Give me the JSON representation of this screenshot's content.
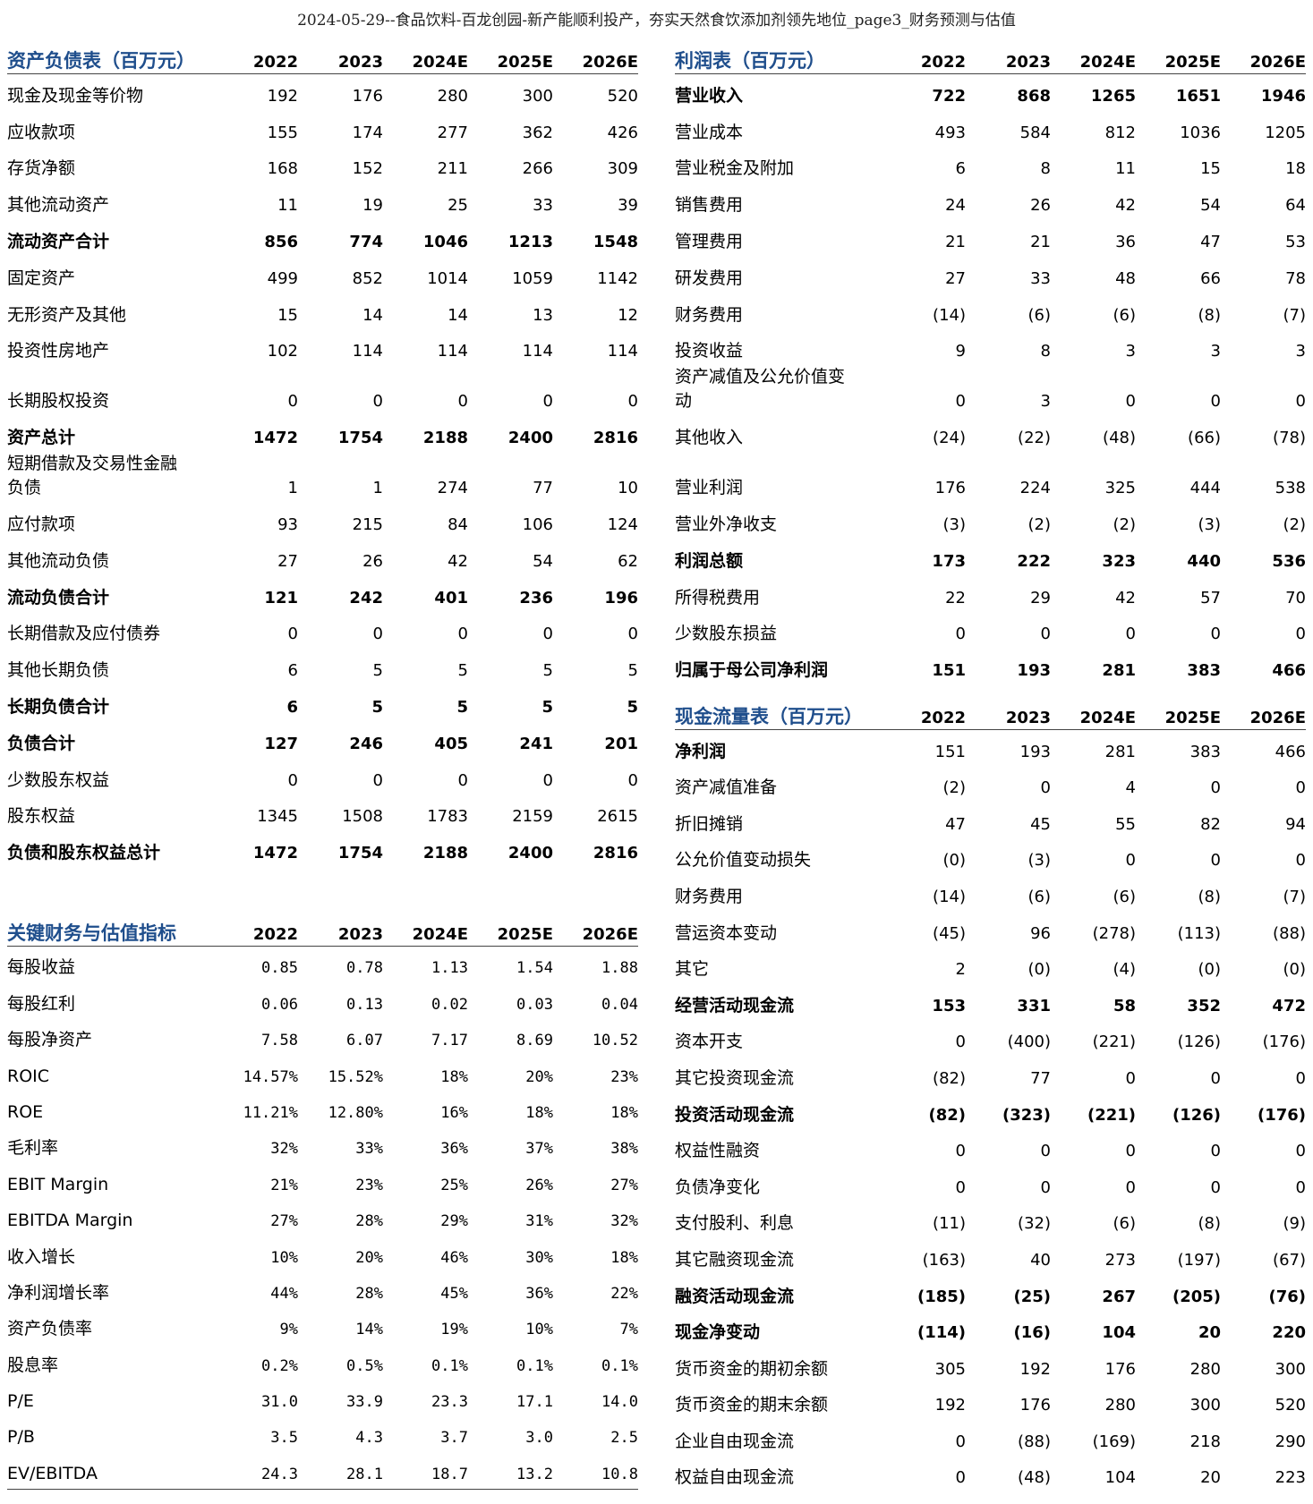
{
  "page_title": "2024-05-29--食品饮料-百龙创园-新产能顺利投产，夯实天然食饮添加剂领先地位_page3_财务预测与估值",
  "balance_sheet": {
    "title": "资产负债表（百万元）",
    "years": [
      "2022",
      "2023",
      "2024E",
      "2025E",
      "2026E"
    ],
    "rows": [
      {
        "label": "现金及现金等价物",
        "values": [
          "192",
          "176",
          "280",
          "300",
          "520"
        ]
      },
      {
        "label": "应收款项",
        "values": [
          "155",
          "174",
          "277",
          "362",
          "426"
        ]
      },
      {
        "label": "存货净额",
        "values": [
          "168",
          "152",
          "211",
          "266",
          "309"
        ]
      },
      {
        "label": "其他流动资产",
        "values": [
          "11",
          "19",
          "25",
          "33",
          "39"
        ]
      },
      {
        "label": "流动资产合计",
        "values": [
          "856",
          "774",
          "1046",
          "1213",
          "1548"
        ],
        "bold": true
      },
      {
        "label": "固定资产",
        "values": [
          "499",
          "852",
          "1014",
          "1059",
          "1142"
        ]
      },
      {
        "label": "无形资产及其他",
        "values": [
          "15",
          "14",
          "14",
          "13",
          "12"
        ]
      },
      {
        "label": "投资性房地产",
        "values": [
          "102",
          "114",
          "114",
          "114",
          "114"
        ]
      },
      {
        "label": "长期股权投资",
        "values": [
          "0",
          "0",
          "0",
          "0",
          "0"
        ],
        "tall": true
      },
      {
        "label": "资产总计",
        "values": [
          "1472",
          "1754",
          "2188",
          "2400",
          "2816"
        ],
        "bold": true
      },
      {
        "label": "短期借款及交易性金融\n负债",
        "values": [
          "1",
          "1",
          "274",
          "77",
          "10"
        ],
        "tall": true
      },
      {
        "label": "应付款项",
        "values": [
          "93",
          "215",
          "84",
          "106",
          "124"
        ]
      },
      {
        "label": "其他流动负债",
        "values": [
          "27",
          "26",
          "42",
          "54",
          "62"
        ]
      },
      {
        "label": "流动负债合计",
        "values": [
          "121",
          "242",
          "401",
          "236",
          "196"
        ],
        "bold": true
      },
      {
        "label": "长期借款及应付债券",
        "values": [
          "0",
          "0",
          "0",
          "0",
          "0"
        ]
      },
      {
        "label": "其他长期负债",
        "values": [
          "6",
          "5",
          "5",
          "5",
          "5"
        ]
      },
      {
        "label": "长期负债合计",
        "values": [
          "6",
          "5",
          "5",
          "5",
          "5"
        ],
        "bold": true
      },
      {
        "label": "负债合计",
        "values": [
          "127",
          "246",
          "405",
          "241",
          "201"
        ],
        "bold": true
      },
      {
        "label": "少数股东权益",
        "values": [
          "0",
          "0",
          "0",
          "0",
          "0"
        ]
      },
      {
        "label": "股东权益",
        "values": [
          "1345",
          "1508",
          "1783",
          "2159",
          "2615"
        ]
      },
      {
        "label": "负债和股东权益总计",
        "values": [
          "1472",
          "1754",
          "2188",
          "2400",
          "2816"
        ],
        "bold": true
      }
    ]
  },
  "key_metrics": {
    "title": "关键财务与估值指标",
    "years": [
      "2022",
      "2023",
      "2024E",
      "2025E",
      "2026E"
    ],
    "rows": [
      {
        "label": "每股收益",
        "values": [
          "0.85",
          "0.78",
          "1.13",
          "1.54",
          "1.88"
        ]
      },
      {
        "label": "每股红利",
        "values": [
          "0.06",
          "0.13",
          "0.02",
          "0.03",
          "0.04"
        ]
      },
      {
        "label": "每股净资产",
        "values": [
          "7.58",
          "6.07",
          "7.17",
          "8.69",
          "10.52"
        ]
      },
      {
        "label": "ROIC",
        "values": [
          "14.57%",
          "15.52%",
          "18%",
          "20%",
          "23%"
        ]
      },
      {
        "label": "ROE",
        "values": [
          "11.21%",
          "12.80%",
          "16%",
          "18%",
          "18%"
        ]
      },
      {
        "label": "毛利率",
        "values": [
          "32%",
          "33%",
          "36%",
          "37%",
          "38%"
        ]
      },
      {
        "label": "EBIT Margin",
        "values": [
          "21%",
          "23%",
          "25%",
          "26%",
          "27%"
        ]
      },
      {
        "label": "EBITDA  Margin",
        "values": [
          "27%",
          "28%",
          "29%",
          "31%",
          "32%"
        ]
      },
      {
        "label": "收入增长",
        "values": [
          "10%",
          "20%",
          "46%",
          "30%",
          "18%"
        ]
      },
      {
        "label": "净利润增长率",
        "values": [
          "44%",
          "28%",
          "45%",
          "36%",
          "22%"
        ]
      },
      {
        "label": "资产负债率",
        "values": [
          "9%",
          "14%",
          "19%",
          "10%",
          "7%"
        ]
      },
      {
        "label": "股息率",
        "values": [
          "0.2%",
          "0.5%",
          "0.1%",
          "0.1%",
          "0.1%"
        ]
      },
      {
        "label": "P/E",
        "values": [
          "31.0",
          "33.9",
          "23.3",
          "17.1",
          "14.0"
        ]
      },
      {
        "label": "P/B",
        "values": [
          "3.5",
          "4.3",
          "3.7",
          "3.0",
          "2.5"
        ]
      },
      {
        "label": "EV/EBITDA",
        "values": [
          "24.3",
          "28.1",
          "18.7",
          "13.2",
          "10.8"
        ]
      }
    ]
  },
  "income_statement": {
    "title": "利润表（百万元）",
    "years": [
      "2022",
      "2023",
      "2024E",
      "2025E",
      "2026E"
    ],
    "rows": [
      {
        "label": "营业收入",
        "values": [
          "722",
          "868",
          "1265",
          "1651",
          "1946"
        ],
        "bold": true
      },
      {
        "label": "营业成本",
        "values": [
          "493",
          "584",
          "812",
          "1036",
          "1205"
        ]
      },
      {
        "label": "营业税金及附加",
        "values": [
          "6",
          "8",
          "11",
          "15",
          "18"
        ]
      },
      {
        "label": "销售费用",
        "values": [
          "24",
          "26",
          "42",
          "54",
          "64"
        ]
      },
      {
        "label": "管理费用",
        "values": [
          "21",
          "21",
          "36",
          "47",
          "53"
        ]
      },
      {
        "label": "研发费用",
        "values": [
          "27",
          "33",
          "48",
          "66",
          "78"
        ]
      },
      {
        "label": "财务费用",
        "values": [
          "(14)",
          "(6)",
          "(6)",
          "(8)",
          "(7)"
        ]
      },
      {
        "label": "投资收益",
        "values": [
          "9",
          "8",
          "3",
          "3",
          "3"
        ]
      },
      {
        "label": "资产减值及公允价值变\n动",
        "values": [
          "0",
          "3",
          "0",
          "0",
          "0"
        ],
        "tall": true
      },
      {
        "label": "其他收入",
        "values": [
          "(24)",
          "(22)",
          "(48)",
          "(66)",
          "(78)"
        ]
      },
      {
        "label": "营业利润",
        "values": [
          "176",
          "224",
          "325",
          "444",
          "538"
        ],
        "tall": true
      },
      {
        "label": "营业外净收支",
        "values": [
          "(3)",
          "(2)",
          "(2)",
          "(3)",
          "(2)"
        ]
      },
      {
        "label": "利润总额",
        "values": [
          "173",
          "222",
          "323",
          "440",
          "536"
        ],
        "bold": true
      },
      {
        "label": "所得税费用",
        "values": [
          "22",
          "29",
          "42",
          "57",
          "70"
        ]
      },
      {
        "label": "少数股东损益",
        "values": [
          "0",
          "0",
          "0",
          "0",
          "0"
        ]
      },
      {
        "label": "归属于母公司净利润",
        "values": [
          "151",
          "193",
          "281",
          "383",
          "466"
        ],
        "bold": true
      }
    ]
  },
  "cash_flow": {
    "title": "现金流量表（百万元）",
    "years": [
      "2022",
      "2023",
      "2024E",
      "2025E",
      "2026E"
    ],
    "rows": [
      {
        "label": "净利润",
        "values": [
          "151",
          "193",
          "281",
          "383",
          "466"
        ],
        "boldLabel": true
      },
      {
        "label": "资产减值准备",
        "values": [
          "(2)",
          "0",
          "4",
          "0",
          "0"
        ]
      },
      {
        "label": "折旧摊销",
        "values": [
          "47",
          "45",
          "55",
          "82",
          "94"
        ]
      },
      {
        "label": "公允价值变动损失",
        "values": [
          "(0)",
          "(3)",
          "0",
          "0",
          "0"
        ]
      },
      {
        "label": "财务费用",
        "values": [
          "(14)",
          "(6)",
          "(6)",
          "(8)",
          "(7)"
        ]
      },
      {
        "label": "营运资本变动",
        "values": [
          "(45)",
          "96",
          "(278)",
          "(113)",
          "(88)"
        ]
      },
      {
        "label": "其它",
        "values": [
          "2",
          "(0)",
          "(4)",
          "(0)",
          "(0)"
        ]
      },
      {
        "label": "经营活动现金流",
        "values": [
          "153",
          "331",
          "58",
          "352",
          "472"
        ],
        "bold": true
      },
      {
        "label": "资本开支",
        "values": [
          "0",
          "(400)",
          "(221)",
          "(126)",
          "(176)"
        ]
      },
      {
        "label": "其它投资现金流",
        "values": [
          "(82)",
          "77",
          "0",
          "0",
          "0"
        ]
      },
      {
        "label": "投资活动现金流",
        "values": [
          "(82)",
          "(323)",
          "(221)",
          "(126)",
          "(176)"
        ],
        "bold": true
      },
      {
        "label": "权益性融资",
        "values": [
          "0",
          "0",
          "0",
          "0",
          "0"
        ]
      },
      {
        "label": "负债净变化",
        "values": [
          "0",
          "0",
          "0",
          "0",
          "0"
        ]
      },
      {
        "label": "支付股利、利息",
        "values": [
          "(11)",
          "(32)",
          "(6)",
          "(8)",
          "(9)"
        ]
      },
      {
        "label": "其它融资现金流",
        "values": [
          "(163)",
          "40",
          "273",
          "(197)",
          "(67)"
        ]
      },
      {
        "label": "融资活动现金流",
        "values": [
          "(185)",
          "(25)",
          "267",
          "(205)",
          "(76)"
        ],
        "bold": true
      },
      {
        "label": "现金净变动",
        "values": [
          "(114)",
          "(16)",
          "104",
          "20",
          "220"
        ],
        "bold": true
      },
      {
        "label": "货币资金的期初余额",
        "values": [
          "305",
          "192",
          "176",
          "280",
          "300"
        ]
      },
      {
        "label": "货币资金的期末余额",
        "values": [
          "192",
          "176",
          "280",
          "300",
          "520"
        ]
      },
      {
        "label": "企业自由现金流",
        "values": [
          "0",
          "(88)",
          "(169)",
          "218",
          "290"
        ]
      },
      {
        "label": "权益自由现金流",
        "values": [
          "0",
          "(48)",
          "104",
          "20",
          "223"
        ]
      }
    ]
  }
}
